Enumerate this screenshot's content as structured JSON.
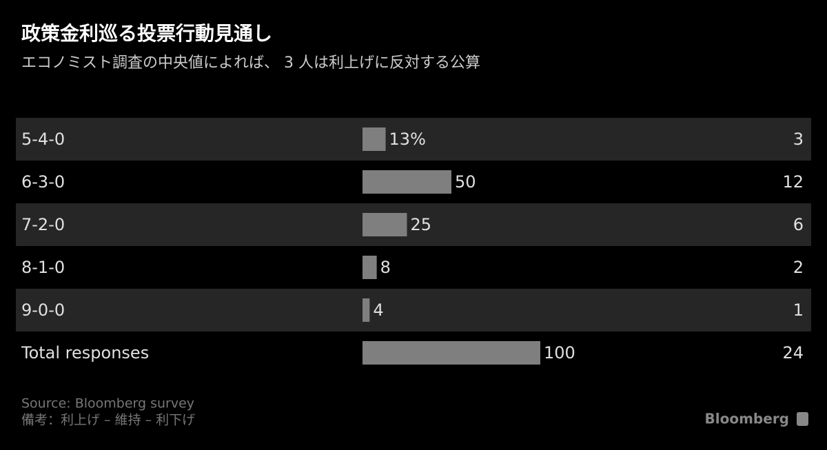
{
  "chart_data": {
    "type": "bar",
    "title": "政策金利巡る投票行動見通し",
    "subtitle": "エコノミスト調査の中央値によれば、 3 人は利上げに反対する公算",
    "categories": [
      "5-4-0",
      "6-3-0",
      "7-2-0",
      "8-1-0",
      "9-0-0",
      "Total responses"
    ],
    "values": [
      13,
      50,
      25,
      8,
      4,
      100
    ],
    "value_labels": [
      "13%",
      "50",
      "25",
      "8",
      "4",
      "100"
    ],
    "counts": [
      3,
      12,
      6,
      2,
      1,
      24
    ],
    "color": "#7f7f7f",
    "source": "Source: Bloomberg survey",
    "note": "備考：利上げ – 維持 – 利下げ",
    "logo": "Bloomberg"
  }
}
